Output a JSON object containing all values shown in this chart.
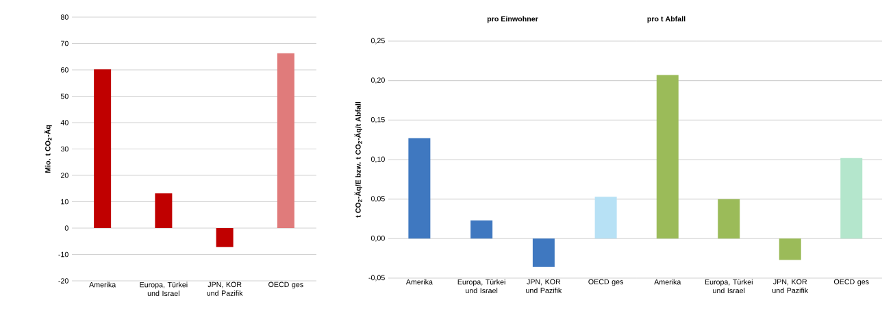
{
  "chart_data": [
    {
      "type": "bar",
      "ylabel": "Mio. t CO$_{2}$-Äq",
      "categories": [
        "Amerika",
        "Europa, Türkei und Israel",
        "JPN, KOR und Pazifik",
        "OECD ges"
      ],
      "values": [
        60.2,
        13.2,
        -7.2,
        66.3
      ],
      "colors": [
        "#c00000",
        "#c00000",
        "#c00000",
        "#e07b7b"
      ],
      "ylim": [
        -20,
        80
      ],
      "yticks": [
        -20,
        -10,
        0,
        10,
        20,
        30,
        40,
        50,
        60,
        70,
        80
      ],
      "grid": "y"
    },
    {
      "type": "bar",
      "title": "pro Einwohner",
      "ylabel": "t CO$_{2}$-Äq/E bzw. t CO$_{2}$-Äq/t Abfall",
      "categories": [
        "Amerika",
        "Europa, Türkei und Israel",
        "JPN, KOR und Pazifik",
        "OECD ges"
      ],
      "values": [
        0.127,
        0.023,
        -0.036,
        0.053
      ],
      "colors": [
        "#3f78c0",
        "#3f78c0",
        "#3f78c0",
        "#b7e1f5"
      ],
      "ylim": [
        -0.05,
        0.25
      ],
      "yticks": [
        {
          "value": -0.05,
          "label": "-0,05"
        },
        {
          "value": 0,
          "label": "0,00"
        },
        {
          "value": 0.05,
          "label": "0,05"
        },
        {
          "value": 0.1,
          "label": "0,10"
        },
        {
          "value": 0.15,
          "label": "0,15"
        },
        {
          "value": 0.2,
          "label": "0,20"
        },
        {
          "value": 0.25,
          "label": "0,25"
        }
      ],
      "grid": "y"
    },
    {
      "type": "bar",
      "title": "pro t Abfall",
      "categories": [
        "Amerika",
        "Europa, Türkei und Israel",
        "JPN, KOR und Pazifik",
        "OECD ges"
      ],
      "values": [
        0.207,
        0.05,
        -0.027,
        0.102
      ],
      "colors": [
        "#9bbb59",
        "#9bbb59",
        "#9bbb59",
        "#b4e6cc"
      ],
      "ylim": [
        -0.05,
        0.25
      ],
      "yticks": [
        -0.05,
        0,
        0.05,
        0.1,
        0.15,
        0.2,
        0.25
      ],
      "grid": "y",
      "tick_labels": "x"
    }
  ]
}
